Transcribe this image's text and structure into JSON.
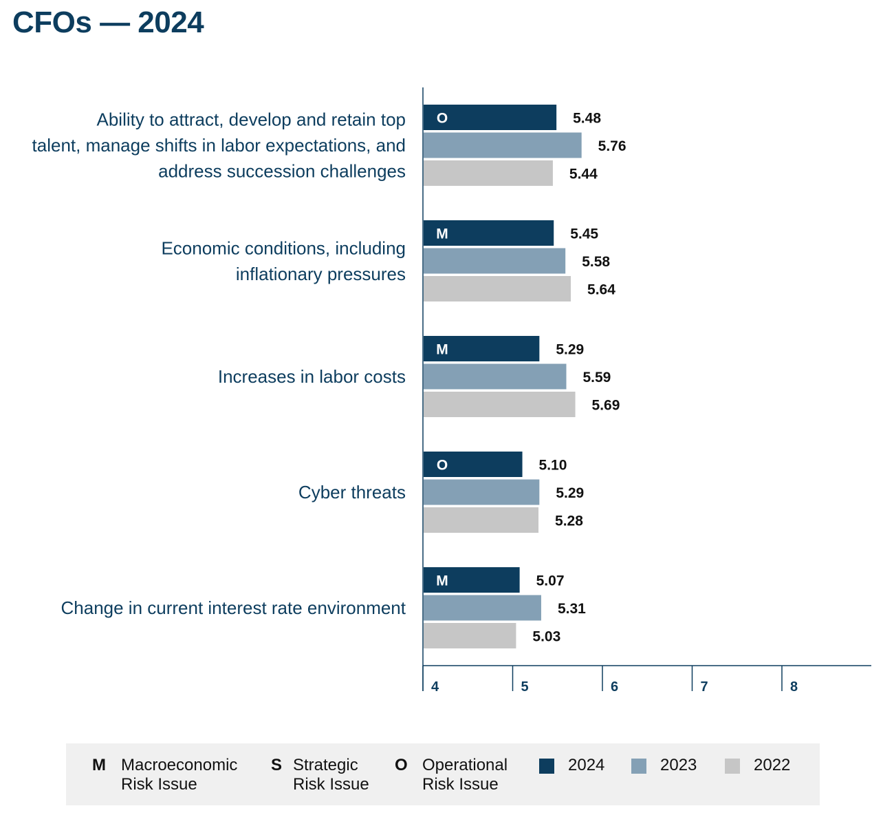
{
  "title": "CFOs — 2024",
  "colors": {
    "2024": "#0d3d5e",
    "2023": "#84a0b5",
    "2022": "#c6c6c6",
    "axis": "#0d3d5e"
  },
  "chart_data": {
    "type": "bar",
    "orientation": "horizontal",
    "categories": [
      [
        "Ability to attract, develop and retain top",
        "talent, manage shifts in labor expectations, and",
        "address succession challenges"
      ],
      [
        "Economic conditions, including",
        "inflationary pressures"
      ],
      [
        "Increases in labor costs"
      ],
      [
        "Cyber threats"
      ],
      [
        "Change in current interest rate environment"
      ]
    ],
    "risk_codes": [
      "O",
      "M",
      "M",
      "O",
      "M"
    ],
    "series": [
      {
        "name": "2024",
        "values": [
          5.48,
          5.45,
          5.29,
          5.1,
          5.07
        ],
        "labels": [
          "5.48",
          "5.45",
          "5.29",
          "5.10",
          "5.07"
        ]
      },
      {
        "name": "2023",
        "values": [
          5.76,
          5.58,
          5.59,
          5.29,
          5.31
        ],
        "labels": [
          "5.76",
          "5.58",
          "5.59",
          "5.29",
          "5.31"
        ]
      },
      {
        "name": "2022",
        "values": [
          5.44,
          5.64,
          5.69,
          5.28,
          5.03
        ],
        "labels": [
          "5.44",
          "5.64",
          "5.69",
          "5.28",
          "5.03"
        ]
      }
    ],
    "xlim": [
      4,
      9
    ],
    "xticks": [
      "4",
      "5",
      "6",
      "7",
      "8"
    ],
    "xlabel": "",
    "ylabel": ""
  },
  "legend": {
    "codes": [
      {
        "code": "M",
        "text1": "Macroeconomic",
        "text2": "Risk Issue"
      },
      {
        "code": "S",
        "text1": "Strategic",
        "text2": "Risk Issue"
      },
      {
        "code": "O",
        "text1": "Operational",
        "text2": "Risk Issue"
      }
    ],
    "years": [
      "2024",
      "2023",
      "2022"
    ]
  }
}
